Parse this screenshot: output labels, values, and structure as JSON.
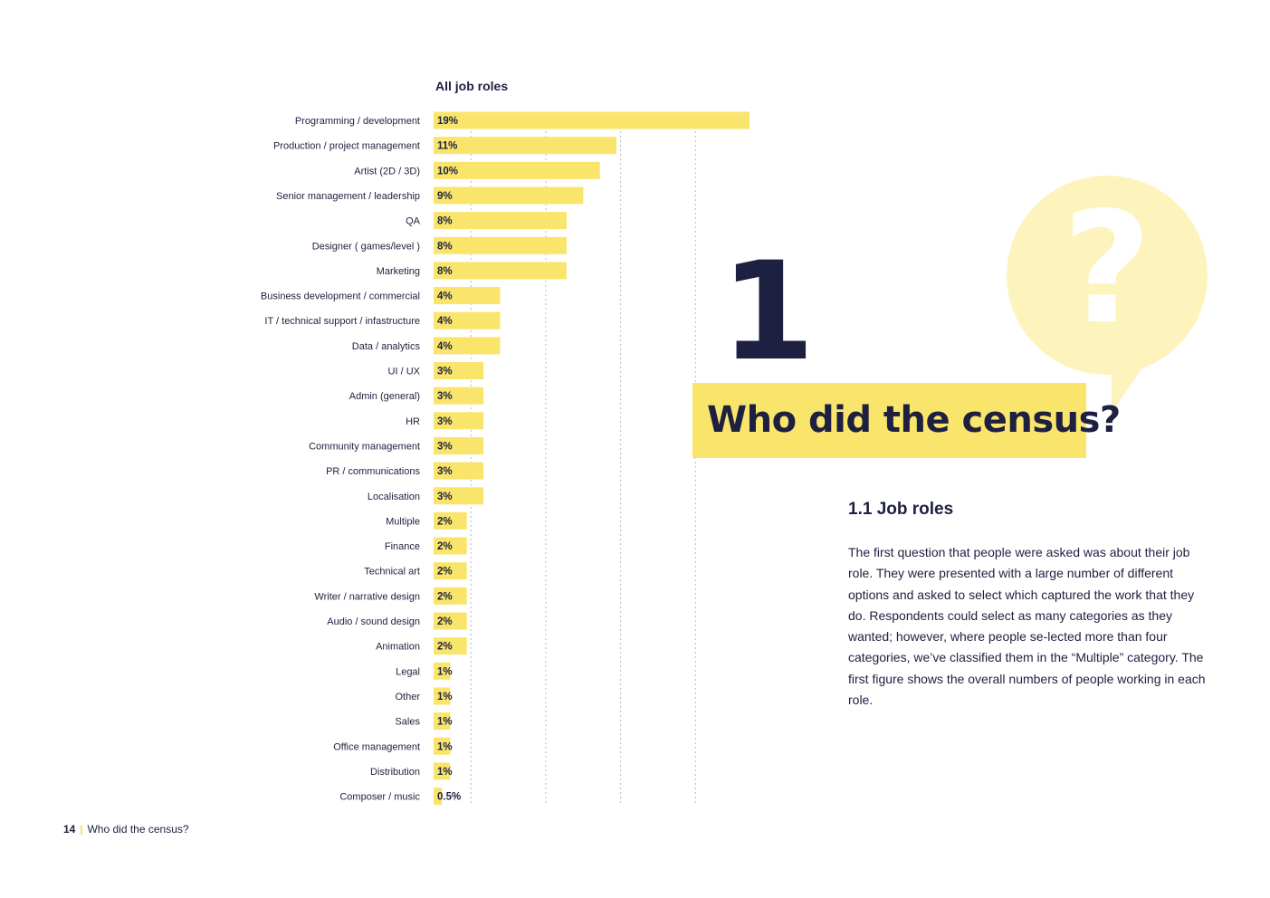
{
  "chart_data": {
    "type": "bar",
    "orientation": "horizontal",
    "title": "All job roles",
    "categories": [
      "Programming / development",
      "Production / project management",
      "Artist (2D / 3D)",
      "Senior management / leadership",
      "QA",
      "Designer ( games/level )",
      "Marketing",
      "Business development / commercial",
      "IT / technical support / infastructure",
      "Data / analytics",
      "UI / UX",
      "Admin (general)",
      "HR",
      "Community management",
      "PR / communications",
      "Localisation",
      "Multiple",
      "Finance",
      "Technical art",
      "Writer / narrative design",
      "Audio / sound design",
      "Animation",
      "Legal",
      "Other",
      "Sales",
      "Office management",
      "Distribution",
      "Composer / music"
    ],
    "values": [
      19,
      11,
      10,
      9,
      8,
      8,
      8,
      4,
      4,
      4,
      3,
      3,
      3,
      3,
      3,
      3,
      2,
      2,
      2,
      2,
      2,
      2,
      1,
      1,
      1,
      1,
      1,
      0.5
    ],
    "value_labels": [
      "19%",
      "11%",
      "10%",
      "9%",
      "8%",
      "8%",
      "8%",
      "4%",
      "4%",
      "4%",
      "3%",
      "3%",
      "3%",
      "3%",
      "3%",
      "3%",
      "2%",
      "2%",
      "2%",
      "2%",
      "2%",
      "2%",
      "1%",
      "1%",
      "1%",
      "1%",
      "1%",
      "0.5%"
    ],
    "unit": "%",
    "gridlines": [
      2.25,
      6.75,
      11.25,
      15.75
    ],
    "xlim": [
      0,
      19
    ],
    "grid": true,
    "bar_color": "#f9e56b"
  },
  "chapter": {
    "number": "1",
    "title": "Who did the census?",
    "bubble_mark": "?"
  },
  "section": {
    "heading": "1.1 Job roles",
    "body": "The first question that people were asked was about their job role. They were presented with a large number of different options and asked to select which captured the work that they do. Respondents could select as many categories as they wanted; however, where people se-lected more than four categories, we’ve classified them in the “Multiple” category. The first figure shows the overall numbers of people working in each role."
  },
  "footer": {
    "page_number": "14",
    "separator": "|",
    "section_title": "Who did the census?"
  },
  "colors": {
    "ink": "#1d2040",
    "accent_yellow": "#f9e56b",
    "pale_yellow": "#fdf4bd",
    "separator": "#f4c200"
  }
}
